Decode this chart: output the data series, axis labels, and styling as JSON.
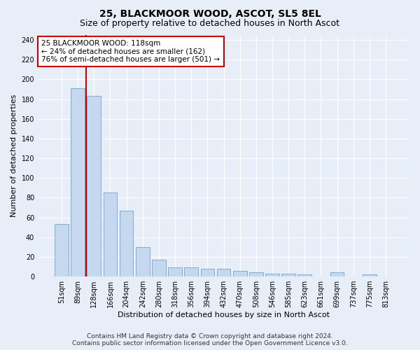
{
  "title": "25, BLACKMOOR WOOD, ASCOT, SL5 8EL",
  "subtitle": "Size of property relative to detached houses in North Ascot",
  "xlabel": "Distribution of detached houses by size in North Ascot",
  "ylabel": "Number of detached properties",
  "categories": [
    "51sqm",
    "89sqm",
    "128sqm",
    "166sqm",
    "204sqm",
    "242sqm",
    "280sqm",
    "318sqm",
    "356sqm",
    "394sqm",
    "432sqm",
    "470sqm",
    "508sqm",
    "546sqm",
    "585sqm",
    "623sqm",
    "661sqm",
    "699sqm",
    "737sqm",
    "775sqm",
    "813sqm"
  ],
  "values": [
    53,
    191,
    183,
    85,
    67,
    30,
    17,
    9,
    9,
    8,
    8,
    6,
    4,
    3,
    3,
    2,
    0,
    4,
    0,
    2,
    0
  ],
  "bar_color": "#c5d8f0",
  "bar_edge_color": "#7bafd4",
  "vline_x": 1.5,
  "vline_color": "#cc0000",
  "annotation_line1": "25 BLACKMOOR WOOD: 118sqm",
  "annotation_line2": "← 24% of detached houses are smaller (162)",
  "annotation_line3": "76% of semi-detached houses are larger (501) →",
  "annotation_box_color": "#ffffff",
  "annotation_box_edge_color": "#cc0000",
  "ylim": [
    0,
    245
  ],
  "yticks": [
    0,
    20,
    40,
    60,
    80,
    100,
    120,
    140,
    160,
    180,
    200,
    220,
    240
  ],
  "footer_line1": "Contains HM Land Registry data © Crown copyright and database right 2024.",
  "footer_line2": "Contains public sector information licensed under the Open Government Licence v3.0.",
  "background_color": "#e8eef8",
  "grid_color": "#ffffff",
  "title_fontsize": 10,
  "subtitle_fontsize": 9,
  "axis_label_fontsize": 8,
  "tick_fontsize": 7,
  "annotation_fontsize": 7.5,
  "footer_fontsize": 6.5
}
